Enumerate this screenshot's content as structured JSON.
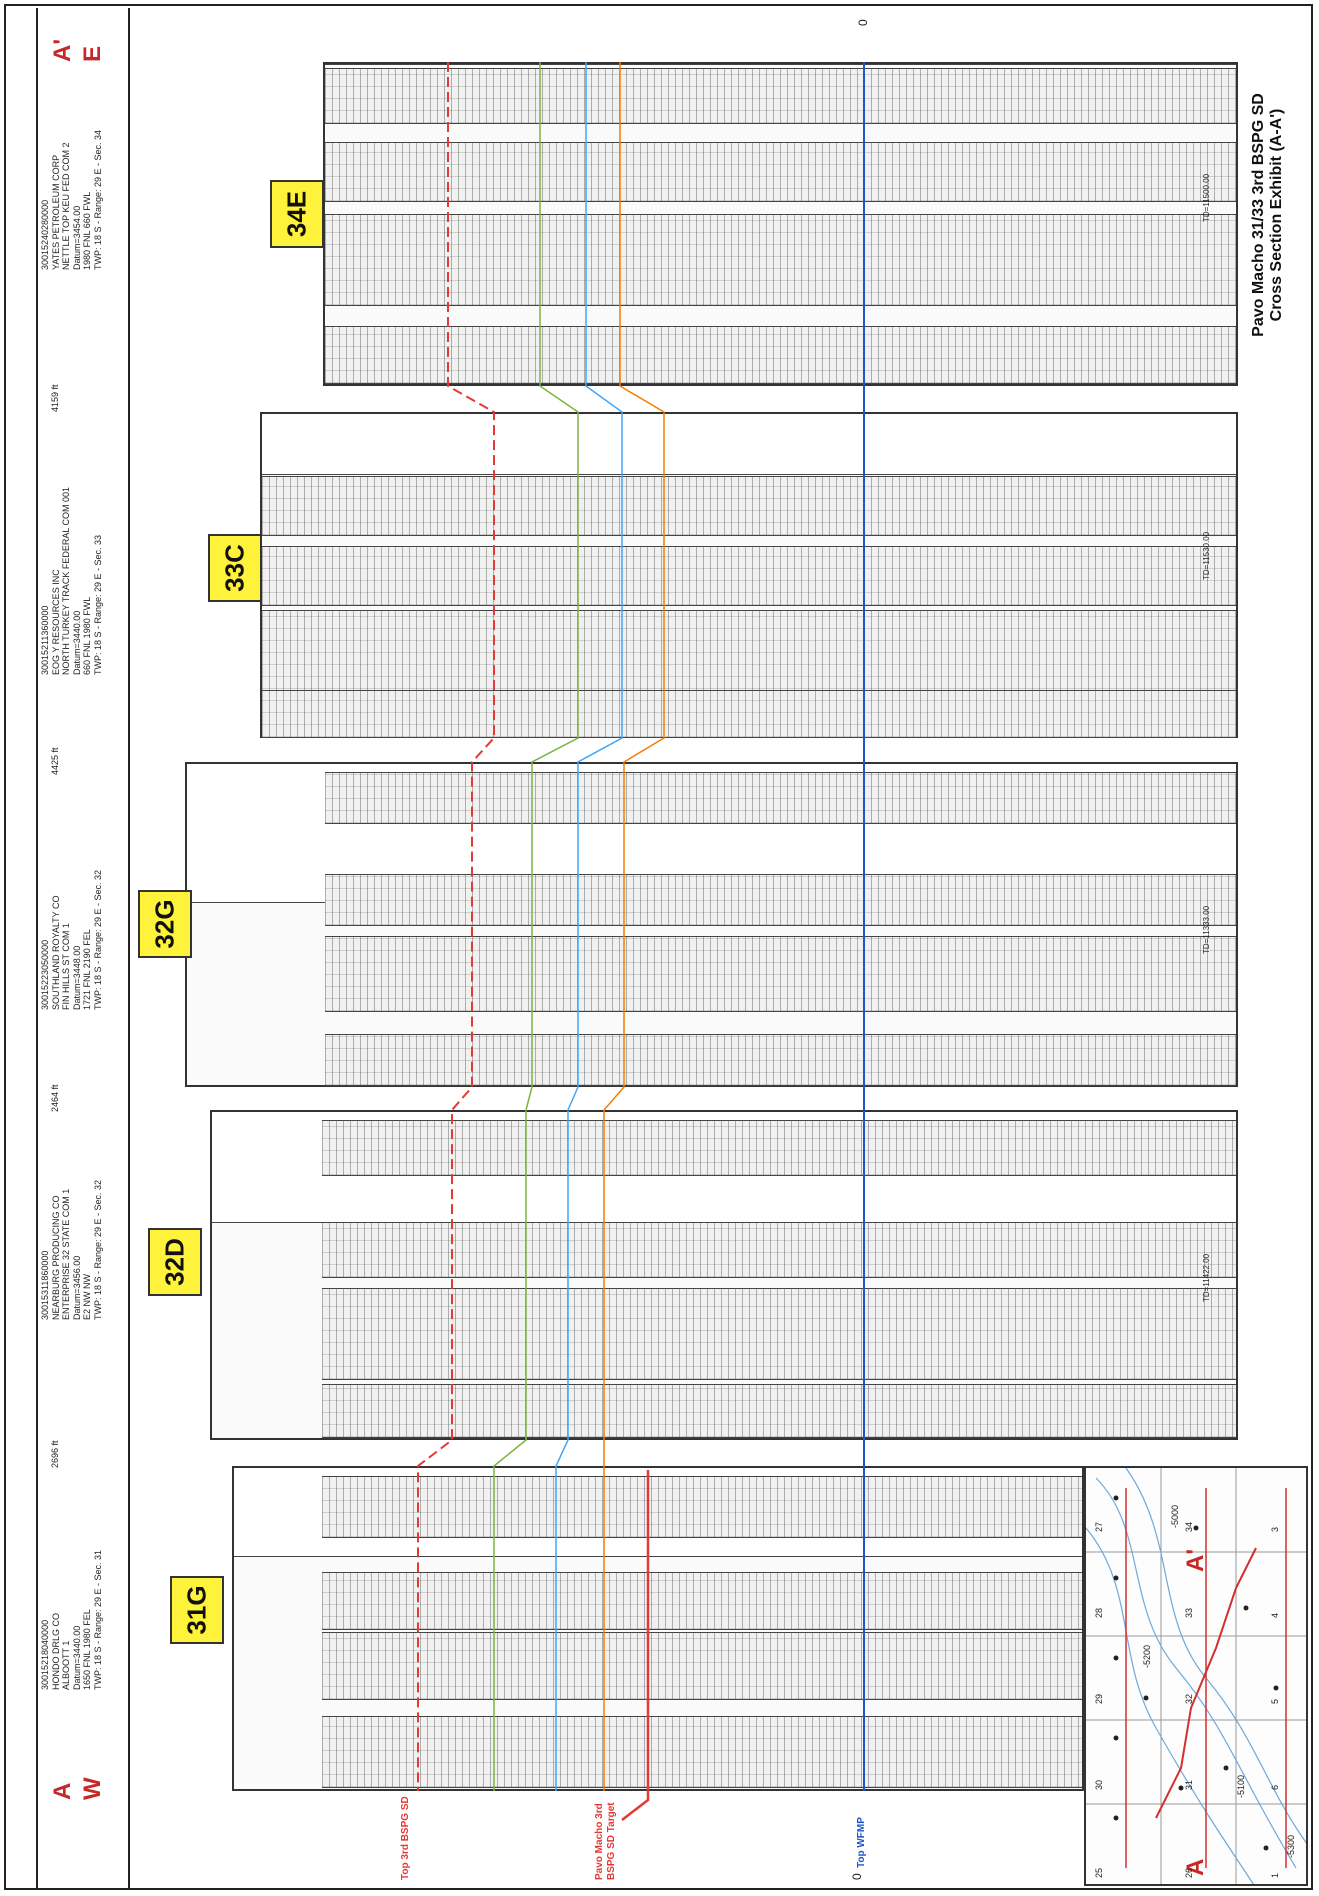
{
  "ends": {
    "left": {
      "letter": "A",
      "dir": "W"
    },
    "right": {
      "letter": "A'",
      "dir": "E"
    }
  },
  "wells": [
    {
      "id": "31G",
      "api": "30015218040000",
      "operator": "HONDO DRLG CO",
      "lease": "ALBOOTT 1",
      "datum": "Datum=3440.00",
      "loc": "1650 FNL 1980 FEL",
      "twp": "TWP: 18 S - Range: 29 E - Sec. 31",
      "td": ""
    },
    {
      "id": "32D",
      "api": "30015311860000",
      "operator": "NEARBURG PRODUCING CO",
      "lease": "ENTERPRISE 32 STATE COM 1",
      "datum": "Datum=3456.00",
      "loc": "E2 NW NW",
      "twp": "TWP: 18 S - Range: 29 E - Sec. 32",
      "td": "TD=11422.00"
    },
    {
      "id": "32G",
      "api": "30015223050000",
      "operator": "SOUTHLAND ROYALTY CO",
      "lease": "FIN HILLS ST COM 1",
      "datum": "Datum=3448.00",
      "loc": "1721 FNL 2190 FEL",
      "twp": "TWP: 18 S - Range: 29 E - Sec. 32",
      "td": "TD=11333.00"
    },
    {
      "id": "33C",
      "api": "30015211360000",
      "operator": "EOG Y RESOURCES INC",
      "lease": "NORTH TURKEY TRACK FEDERAL COM 001",
      "datum": "Datum=3440.00",
      "loc": "660 FNL 1980 FWL",
      "twp": "TWP: 18 S - Range: 29 E - Sec. 33",
      "td": "TD=11530.00"
    },
    {
      "id": "34E",
      "api": "30015240280000",
      "operator": "YATES PETROLEUM CORP",
      "lease": "NETTLE TOP KEU FED COM 2",
      "datum": "Datum=3454.00",
      "loc": "1980 FNL 660 FWL",
      "twp": "TWP: 18 S - Range: 29 E - Sec. 34",
      "td": "TD=11500.00"
    }
  ],
  "distances": [
    "2696 ft",
    "2464 ft",
    "4425 ft",
    "4159 ft"
  ],
  "markers": {
    "top3rd": "Top 3rd BSPG SD",
    "target": "Pavo Macho 3rd BSPG SD Target",
    "wfmp": "Top WFMP"
  },
  "scale_labels": {
    "top": "0",
    "bottom": "0"
  },
  "title": {
    "line1": "Pavo Macho 31/33 3rd BSPG SD",
    "line2": "Cross Section Exhibit (A-A')"
  },
  "map": {
    "letter_a": "A",
    "letter_a2": "A'",
    "sections": [
      "25",
      "30",
      "29",
      "28",
      "27",
      "26",
      "31",
      "32",
      "33",
      "34",
      "1",
      "6",
      "5",
      "4",
      "3"
    ],
    "contours": [
      "-5200",
      "-5100",
      "-5000",
      "-5300"
    ]
  },
  "colors": {
    "top3rd": "#e53935",
    "target": "#f57c00",
    "wfmp": "#1e56c8",
    "green": "#7cb342",
    "blue": "#42a5f5",
    "badge": "#fff23a"
  }
}
